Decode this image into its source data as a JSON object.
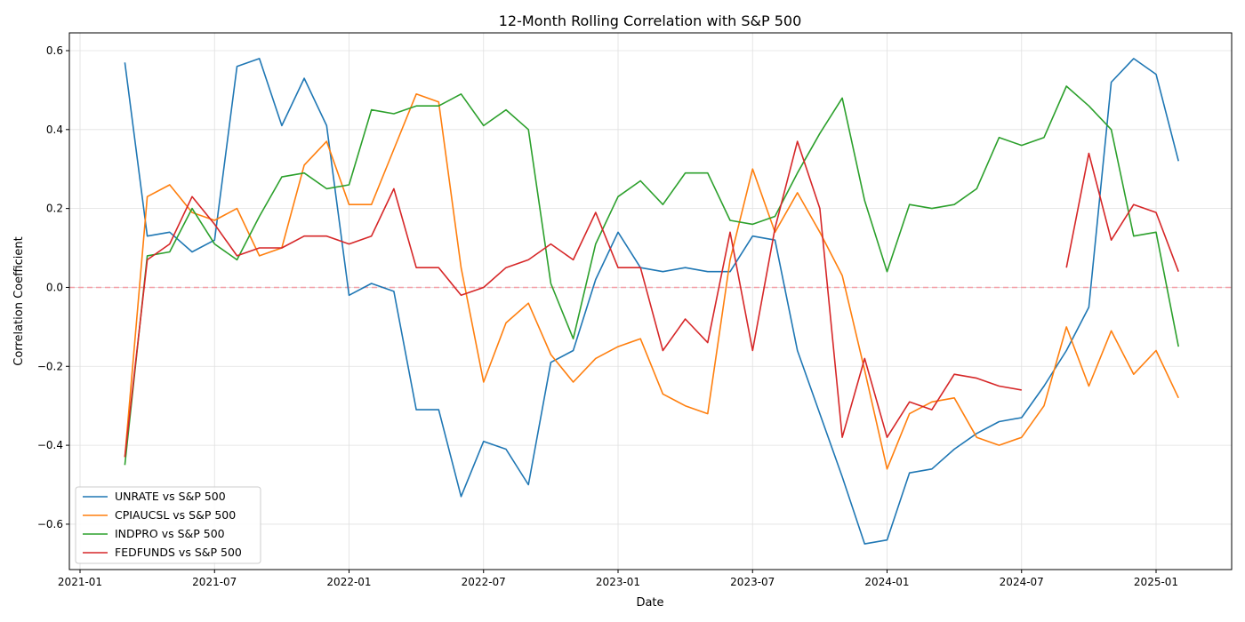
{
  "chart_data": {
    "type": "line",
    "title": "12-Month Rolling Correlation with S&P 500",
    "xlabel": "Date",
    "ylabel": "Correlation Coefficient",
    "ylim": [
      -0.715,
      0.645
    ],
    "yticks": [
      -0.6,
      -0.4,
      -0.2,
      0.0,
      0.2,
      0.4,
      0.6
    ],
    "ytick_labels": [
      "−0.6",
      "−0.4",
      "−0.2",
      "0.0",
      "0.2",
      "0.4",
      "0.6"
    ],
    "xticks": [
      "2021-01",
      "2021-07",
      "2022-01",
      "2022-07",
      "2023-01",
      "2023-07",
      "2024-01",
      "2024-07",
      "2025-01"
    ],
    "grid": true,
    "legend_position": "lower-left",
    "reference_line": {
      "y": 0,
      "style": "dashed",
      "color": "#f4a0a8"
    },
    "x": [
      "2021-03",
      "2021-04",
      "2021-05",
      "2021-06",
      "2021-07",
      "2021-08",
      "2021-09",
      "2021-10",
      "2021-11",
      "2021-12",
      "2022-01",
      "2022-02",
      "2022-03",
      "2022-04",
      "2022-05",
      "2022-06",
      "2022-07",
      "2022-08",
      "2022-09",
      "2022-10",
      "2022-11",
      "2022-12",
      "2023-01",
      "2023-02",
      "2023-03",
      "2023-04",
      "2023-05",
      "2023-06",
      "2023-07",
      "2023-08",
      "2023-09",
      "2023-10",
      "2023-11",
      "2023-12",
      "2024-01",
      "2024-02",
      "2024-03",
      "2024-04",
      "2024-05",
      "2024-06",
      "2024-07",
      "2024-08",
      "2024-09",
      "2024-10",
      "2024-11",
      "2024-12",
      "2025-01",
      "2025-02"
    ],
    "series": [
      {
        "name": "UNRATE vs S&P 500",
        "color": "#1f77b4",
        "values": [
          0.57,
          0.13,
          0.14,
          0.09,
          0.12,
          0.56,
          0.58,
          0.41,
          0.53,
          0.41,
          -0.02,
          0.01,
          -0.01,
          -0.31,
          -0.31,
          -0.53,
          -0.39,
          -0.41,
          -0.5,
          -0.19,
          -0.16,
          0.02,
          0.14,
          0.05,
          0.04,
          0.05,
          0.04,
          0.04,
          0.13,
          0.12,
          -0.16,
          -0.32,
          -0.48,
          -0.65,
          -0.64,
          -0.47,
          -0.46,
          -0.41,
          -0.37,
          -0.34,
          -0.33,
          -0.25,
          -0.16,
          -0.05,
          0.52,
          0.58,
          0.54,
          0.32
        ]
      },
      {
        "name": "CPIAUCSL vs S&P 500",
        "color": "#ff7f0e",
        "values": [
          -0.43,
          0.23,
          0.26,
          0.19,
          0.17,
          0.2,
          0.08,
          0.1,
          0.31,
          0.37,
          0.21,
          0.21,
          0.35,
          0.49,
          0.47,
          0.05,
          -0.24,
          -0.09,
          -0.04,
          -0.17,
          -0.24,
          -0.18,
          -0.15,
          -0.13,
          -0.27,
          -0.3,
          -0.32,
          0.07,
          0.3,
          0.14,
          0.24,
          0.14,
          0.03,
          -0.21,
          -0.46,
          -0.32,
          -0.29,
          -0.28,
          -0.38,
          -0.4,
          -0.38,
          -0.3,
          -0.1,
          -0.25,
          -0.11,
          -0.22,
          -0.16,
          -0.28
        ]
      },
      {
        "name": "INDPRO vs S&P 500",
        "color": "#2ca02c",
        "values": [
          -0.45,
          0.08,
          0.09,
          0.2,
          0.11,
          0.07,
          0.18,
          0.28,
          0.29,
          0.25,
          0.26,
          0.45,
          0.44,
          0.46,
          0.46,
          0.49,
          0.41,
          0.45,
          0.4,
          0.01,
          -0.13,
          0.11,
          0.23,
          0.27,
          0.21,
          0.29,
          0.29,
          0.17,
          0.16,
          0.18,
          0.29,
          0.39,
          0.48,
          0.22,
          0.04,
          0.21,
          0.2,
          0.21,
          0.25,
          0.38,
          0.36,
          0.38,
          0.51,
          0.46,
          0.4,
          0.13,
          0.14,
          -0.15
        ]
      },
      {
        "name": "FEDFUNDS vs S&P 500",
        "color": "#d62728",
        "values": [
          -0.43,
          0.07,
          0.11,
          0.23,
          0.16,
          0.08,
          0.1,
          0.1,
          0.13,
          0.13,
          0.11,
          0.13,
          0.25,
          0.05,
          0.05,
          -0.02,
          0.0,
          0.05,
          0.07,
          0.11,
          0.07,
          0.19,
          0.05,
          0.05,
          -0.16,
          -0.08,
          -0.14,
          0.14,
          -0.16,
          0.15,
          0.37,
          0.2,
          -0.38,
          -0.18,
          -0.38,
          -0.29,
          -0.31,
          -0.22,
          -0.23,
          -0.25,
          -0.26,
          null,
          0.05,
          0.34,
          0.12,
          0.21,
          0.19,
          0.04
        ]
      }
    ]
  }
}
